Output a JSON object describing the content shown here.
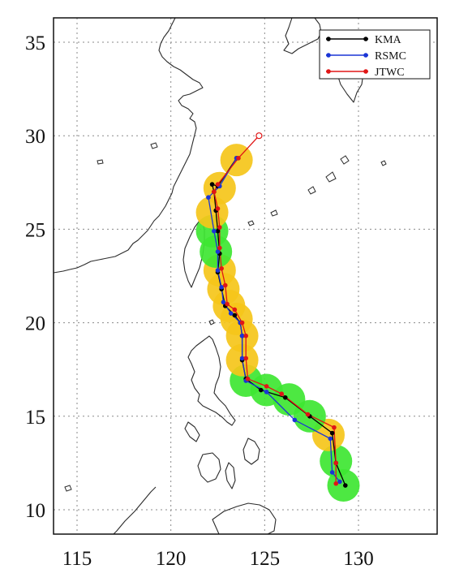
{
  "chart_data": {
    "type": "line",
    "xlim": [
      114,
      134
    ],
    "ylim": [
      9,
      36.5
    ],
    "x_ticks": [
      115,
      120,
      125,
      130
    ],
    "y_ticks": [
      10,
      15,
      20,
      25,
      30,
      35
    ],
    "grid": true,
    "legend_position": "top-right",
    "series": [
      {
        "name": "KMA",
        "color": "#000000",
        "lon": [
          129.3,
          128.8,
          128.6,
          127.4,
          126.1,
          124.8,
          124.0,
          123.8,
          123.8,
          123.7,
          123.4,
          122.9,
          122.7,
          122.5,
          122.6,
          122.5,
          122.4,
          122.3,
          122.2,
          122.5,
          123.5
        ],
        "lat": [
          11.3,
          12.5,
          14.1,
          15.0,
          16.0,
          16.4,
          17.0,
          18.0,
          19.3,
          20.0,
          20.4,
          20.9,
          21.8,
          22.7,
          23.7,
          24.9,
          26.0,
          27.0,
          27.4,
          27.3,
          28.8
        ]
      },
      {
        "name": "RSMC",
        "color": "#1a35d6",
        "lon": [
          129.0,
          128.6,
          128.5,
          126.6,
          125.1,
          124.0,
          123.8,
          123.8,
          123.7,
          123.2,
          122.8,
          122.7,
          122.5,
          122.5,
          122.3,
          122.0,
          122.6,
          123.5
        ],
        "lat": [
          11.5,
          12.0,
          13.8,
          14.8,
          16.3,
          16.9,
          18.1,
          19.3,
          20.0,
          20.5,
          21.1,
          21.9,
          22.8,
          23.8,
          24.9,
          26.7,
          27.3,
          28.8
        ]
      },
      {
        "name": "JTWC",
        "color": "#e01616",
        "lon": [
          128.8,
          128.8,
          128.7,
          127.3,
          125.9,
          125.1,
          124.1,
          124.0,
          124.0,
          123.8,
          123.4,
          123.0,
          122.9,
          122.7,
          122.6,
          122.6,
          122.5,
          122.3,
          122.5,
          123.6,
          124.7
        ],
        "lat": [
          11.4,
          12.5,
          14.4,
          15.1,
          16.2,
          16.6,
          17.0,
          18.1,
          19.3,
          20.0,
          20.7,
          21.0,
          22.0,
          22.9,
          24.0,
          25.1,
          26.1,
          27.0,
          27.4,
          28.8,
          30.0
        ]
      }
    ],
    "intensity_markers": [
      {
        "lon": 129.2,
        "lat": 11.3,
        "level": "green"
      },
      {
        "lon": 128.8,
        "lat": 12.6,
        "level": "green"
      },
      {
        "lon": 128.4,
        "lat": 14.0,
        "level": "yellow"
      },
      {
        "lon": 127.4,
        "lat": 15.0,
        "level": "green"
      },
      {
        "lon": 126.3,
        "lat": 15.9,
        "level": "green"
      },
      {
        "lon": 125.1,
        "lat": 16.4,
        "level": "green"
      },
      {
        "lon": 124.0,
        "lat": 16.9,
        "level": "green"
      },
      {
        "lon": 123.8,
        "lat": 18.0,
        "level": "yellow"
      },
      {
        "lon": 123.8,
        "lat": 19.3,
        "level": "yellow"
      },
      {
        "lon": 123.5,
        "lat": 20.2,
        "level": "yellow"
      },
      {
        "lon": 123.1,
        "lat": 20.9,
        "level": "yellow"
      },
      {
        "lon": 122.8,
        "lat": 21.8,
        "level": "yellow"
      },
      {
        "lon": 122.6,
        "lat": 22.8,
        "level": "yellow"
      },
      {
        "lon": 122.4,
        "lat": 23.8,
        "level": "green"
      },
      {
        "lon": 122.2,
        "lat": 24.9,
        "level": "green"
      },
      {
        "lon": 122.2,
        "lat": 25.9,
        "level": "yellow"
      },
      {
        "lon": 122.6,
        "lat": 27.2,
        "level": "yellow"
      },
      {
        "lon": 123.5,
        "lat": 28.7,
        "level": "yellow"
      }
    ],
    "marker_colors": {
      "green": "#3ee632",
      "yellow": "#f5c51a"
    }
  }
}
